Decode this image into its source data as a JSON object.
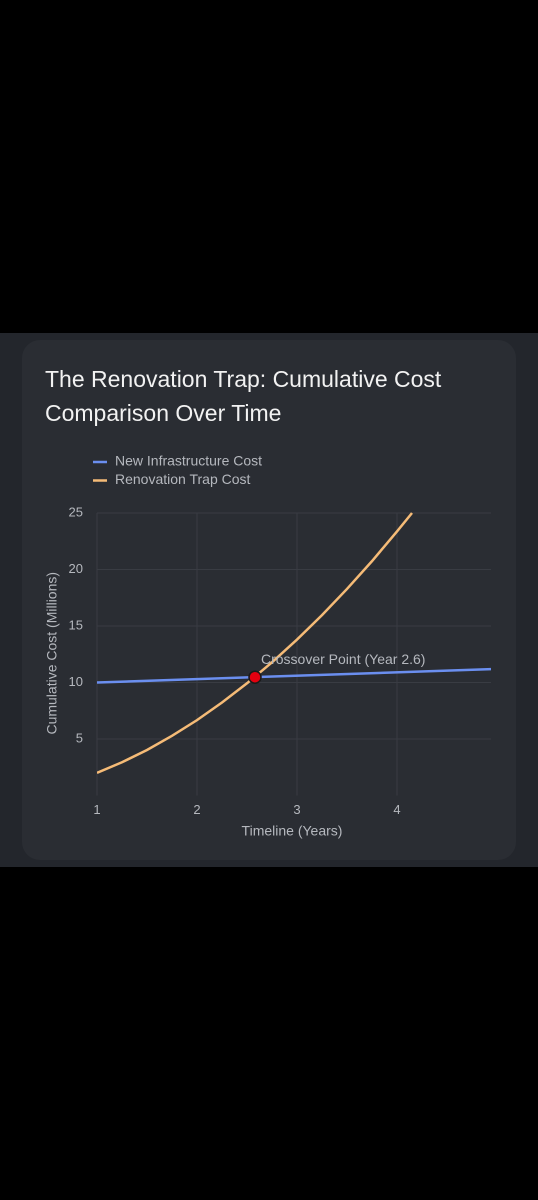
{
  "chart_data": {
    "type": "line",
    "title": "The Renovation Trap: Cumulative Cost Comparison Over Time",
    "x_label": "Timeline (Years)",
    "y_label": "Cumulative Cost (Millions)",
    "xlim": [
      1,
      4.94
    ],
    "ylim": [
      0,
      25
    ],
    "xticks": [
      1,
      2,
      3,
      4
    ],
    "yticks": [
      5,
      10,
      15,
      20,
      25
    ],
    "grid": true,
    "legend": "top-left",
    "series": [
      {
        "name": "New Infrastructure Cost",
        "color": "#6b8ff0",
        "x": [
          1,
          4.94
        ],
        "values": [
          10,
          11.18
        ]
      },
      {
        "name": "Renovation Trap Cost",
        "color": "#f5bb77",
        "x": [
          1,
          1.25,
          1.5,
          1.75,
          2,
          2.25,
          2.5,
          2.75,
          3,
          3.25,
          3.5,
          3.75,
          4,
          4.15
        ],
        "values": [
          2,
          2.94,
          4.03,
          5.28,
          6.67,
          8.23,
          9.93,
          11.79,
          13.8,
          15.96,
          18.28,
          20.74,
          23.37,
          25
        ]
      }
    ],
    "annotation": {
      "text": "Crossover Point (Year 2.6)",
      "x": 2.58,
      "y": 10.47,
      "color": "#e3000f"
    }
  }
}
